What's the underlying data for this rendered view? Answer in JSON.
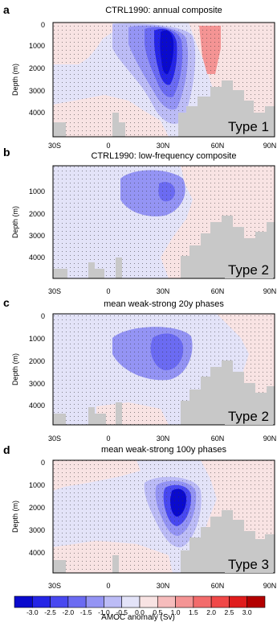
{
  "figure": {
    "colorbar": {
      "title": "AMOC anomaly (Sv)",
      "ticks": [
        "-3.0",
        "-2.5",
        "-2.0",
        "-1.5",
        "-1.0",
        "-0.5",
        "0.0",
        "0.5",
        "1.0",
        "1.5",
        "2.0",
        "2.5",
        "3.0"
      ],
      "colors": [
        "#0a0acd",
        "#2525e6",
        "#4848f0",
        "#6b6bf2",
        "#9494f4",
        "#bcbcf6",
        "#e3e3f8",
        "#f8e3e3",
        "#f6bcbc",
        "#f49494",
        "#f26b6b",
        "#f04848",
        "#e01c1c",
        "#b30000"
      ]
    },
    "colors": {
      "terrain": "#c8c8c8",
      "axis": "#000000"
    }
  },
  "chart_data": [
    {
      "type": "heatmap",
      "panel": "a",
      "title": "CTRL1990: annual composite",
      "ylabel": "Depth (m)",
      "xlabel": "",
      "x_ticks": [
        "30S",
        "0",
        "30N",
        "60N",
        "90N"
      ],
      "y_ticks": [
        "0",
        "1000",
        "2000",
        "3000",
        "4000"
      ],
      "xlim": [
        -30,
        90
      ],
      "ylim": [
        5200,
        0
      ],
      "type_label": "Type 1",
      "features": [
        {
          "kind": "negative_cell",
          "center": [
            30,
            1200
          ],
          "min_value": -3.0
        },
        {
          "kind": "positive_cell",
          "center": [
            55,
            700
          ],
          "max_value": 1.0
        },
        {
          "kind": "positive_cell",
          "center": [
            15,
            3800
          ],
          "max_value": 0.5
        }
      ]
    },
    {
      "type": "heatmap",
      "panel": "b",
      "title": "CTRL1990: low-frequency composite",
      "ylabel": "Depth (m)",
      "xlabel": "",
      "x_ticks": [
        "30S",
        "0",
        "30N",
        "60N",
        "90N"
      ],
      "y_ticks": [
        "1000",
        "2000",
        "3000",
        "4000"
      ],
      "xlim": [
        -30,
        90
      ],
      "ylim": [
        5200,
        0
      ],
      "type_label": "Type 2",
      "features": [
        {
          "kind": "negative_cell",
          "center": [
            28,
            1000
          ],
          "min_value": -1.5
        },
        {
          "kind": "positive_region",
          "center": [
            65,
            2800
          ],
          "max_value": 0.5
        }
      ]
    },
    {
      "type": "heatmap",
      "panel": "c",
      "title": "mean weak-strong 20y phases",
      "ylabel": "Depth (m)",
      "xlabel": "",
      "x_ticks": [
        "30S",
        "0",
        "30N",
        "60N",
        "90N"
      ],
      "y_ticks": [
        "0",
        "1000",
        "2000",
        "3000",
        "4000"
      ],
      "xlim": [
        -30,
        90
      ],
      "ylim": [
        5200,
        0
      ],
      "type_label": "Type 2",
      "features": [
        {
          "kind": "negative_cell",
          "center": [
            30,
            1300
          ],
          "min_value": -1.5
        },
        {
          "kind": "positive_region",
          "center": [
            70,
            2200
          ],
          "max_value": 0.5
        }
      ]
    },
    {
      "type": "heatmap",
      "panel": "d",
      "title": "mean weak-strong 100y phases",
      "ylabel": "Depth (m)",
      "xlabel": "",
      "x_ticks": [
        "30S",
        "0",
        "30N",
        "60N",
        "90N"
      ],
      "y_ticks": [
        "0",
        "1000",
        "2000",
        "3000",
        "4000"
      ],
      "xlim": [
        -30,
        90
      ],
      "ylim": [
        5200,
        0
      ],
      "type_label": "Type 3",
      "features": [
        {
          "kind": "negative_cell",
          "center": [
            38,
            1500
          ],
          "min_value": -3.0
        },
        {
          "kind": "positive_region",
          "center": [
            70,
            2500
          ],
          "max_value": 0.5
        }
      ]
    }
  ]
}
